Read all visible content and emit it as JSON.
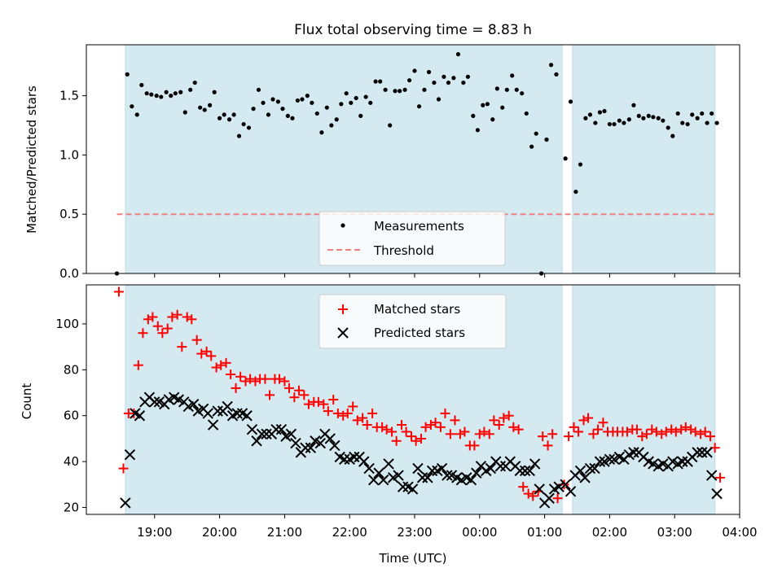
{
  "chart_data": [
    {
      "type": "scatter",
      "title": "Flux total observing time = 8.83 h",
      "xlabel": "",
      "ylabel": "Matched/Predicted stars",
      "xlim_hours": [
        17.95,
        28.0
      ],
      "ylim": [
        0,
        1.93
      ],
      "y_ticks": [
        0.0,
        0.5,
        1.0,
        1.5
      ],
      "y_tick_labels": [
        "0.0",
        "0.5",
        "1.0",
        "1.5"
      ],
      "shaded_intervals_hours": [
        [
          18.55,
          25.27
        ],
        [
          25.43,
          27.62
        ]
      ],
      "shade_color": "#d4e9f0",
      "threshold": {
        "name": "Threshold",
        "value": 0.5,
        "x_range_hours": [
          18.42,
          27.62
        ],
        "color": "#f07f7f"
      },
      "legend": {
        "placement": "bottom-center",
        "entries": [
          "Measurements",
          "Threshold"
        ]
      },
      "series": [
        {
          "name": "Measurements",
          "color": "#000000",
          "x_hours": [
            18.42,
            18.58,
            18.65,
            18.73,
            18.8,
            18.88,
            18.95,
            19.03,
            19.1,
            19.18,
            19.25,
            19.32,
            19.4,
            19.47,
            19.55,
            19.62,
            19.7,
            19.77,
            19.85,
            19.92,
            20.0,
            20.07,
            20.15,
            20.22,
            20.3,
            20.37,
            20.45,
            20.52,
            20.6,
            20.67,
            20.75,
            20.82,
            20.9,
            20.97,
            21.05,
            21.12,
            21.2,
            21.27,
            21.35,
            21.42,
            21.5,
            21.57,
            21.65,
            21.72,
            21.8,
            21.87,
            21.95,
            22.02,
            22.1,
            22.17,
            22.25,
            22.32,
            22.4,
            22.47,
            22.55,
            22.62,
            22.7,
            22.77,
            22.85,
            22.92,
            23.0,
            23.07,
            23.15,
            23.22,
            23.3,
            23.37,
            23.45,
            23.52,
            23.6,
            23.67,
            23.75,
            23.82,
            23.9,
            23.97,
            24.05,
            24.12,
            24.2,
            24.27,
            24.35,
            24.42,
            24.5,
            24.57,
            24.65,
            24.72,
            24.8,
            24.87,
            24.95,
            25.03,
            25.1,
            25.18,
            25.32,
            25.4,
            25.48,
            25.55,
            25.63,
            25.7,
            25.78,
            25.85,
            25.92,
            26.0,
            26.07,
            26.15,
            26.22,
            26.3,
            26.37,
            26.45,
            26.52,
            26.6,
            26.67,
            26.75,
            26.82,
            26.9,
            26.97,
            27.05,
            27.12,
            27.2,
            27.27,
            27.35,
            27.42,
            27.5,
            27.57,
            27.65
          ],
          "y": [
            0.0,
            1.68,
            1.41,
            1.34,
            1.59,
            1.52,
            1.51,
            1.5,
            1.49,
            1.53,
            1.5,
            1.52,
            1.53,
            1.36,
            1.55,
            1.61,
            1.4,
            1.38,
            1.42,
            1.53,
            1.31,
            1.34,
            1.3,
            1.34,
            1.16,
            1.26,
            1.23,
            1.39,
            1.55,
            1.44,
            1.34,
            1.47,
            1.45,
            1.39,
            1.33,
            1.31,
            1.46,
            1.47,
            1.5,
            1.44,
            1.35,
            1.19,
            1.4,
            1.25,
            1.3,
            1.43,
            1.52,
            1.44,
            1.48,
            1.33,
            1.49,
            1.44,
            1.62,
            1.62,
            1.55,
            1.25,
            1.54,
            1.54,
            1.55,
            1.63,
            1.71,
            1.41,
            1.55,
            1.7,
            1.61,
            1.47,
            1.66,
            1.61,
            1.65,
            1.85,
            1.61,
            1.66,
            1.33,
            1.21,
            1.42,
            1.43,
            1.3,
            1.56,
            1.4,
            1.55,
            1.67,
            1.55,
            1.52,
            1.35,
            1.07,
            1.18,
            0.0,
            1.13,
            1.76,
            1.68,
            0.97,
            1.45,
            0.69,
            0.92,
            1.31,
            1.34,
            1.27,
            1.36,
            1.37,
            1.26,
            1.26,
            1.29,
            1.27,
            1.3,
            1.42,
            1.33,
            1.31,
            1.33,
            1.32,
            1.31,
            1.29,
            1.23,
            1.16,
            1.35,
            1.27,
            1.26,
            1.34,
            1.31,
            1.35,
            1.27,
            1.35,
            1.27
          ]
        }
      ]
    },
    {
      "type": "scatter",
      "title": "",
      "xlabel": "Time (UTC)",
      "ylabel": "Count",
      "xlim_hours": [
        17.95,
        28.0
      ],
      "ylim": [
        17,
        117
      ],
      "x_ticks_hours": [
        19,
        20,
        21,
        22,
        23,
        24,
        25,
        26,
        27,
        28
      ],
      "x_tick_labels": [
        "19:00",
        "20:00",
        "21:00",
        "22:00",
        "23:00",
        "00:00",
        "01:00",
        "02:00",
        "03:00",
        "04:00"
      ],
      "y_ticks": [
        20,
        40,
        60,
        80,
        100
      ],
      "y_tick_labels": [
        "20",
        "40",
        "60",
        "80",
        "100"
      ],
      "shaded_intervals_hours": [
        [
          18.55,
          25.27
        ],
        [
          25.43,
          27.62
        ]
      ],
      "shade_color": "#d4e9f0",
      "legend": {
        "placement": "top-center",
        "entries": [
          "Matched stars",
          "Predicted stars"
        ]
      },
      "series": [
        {
          "name": "Matched stars",
          "marker": "plus",
          "color": "#ff0000",
          "x_hours": [
            18.45,
            18.52,
            18.6,
            18.68,
            18.75,
            18.82,
            18.9,
            18.97,
            19.05,
            19.12,
            19.2,
            19.27,
            19.35,
            19.42,
            19.5,
            19.57,
            19.65,
            19.72,
            19.8,
            19.87,
            19.95,
            20.02,
            20.1,
            20.17,
            20.25,
            20.32,
            20.4,
            20.47,
            20.55,
            20.62,
            20.7,
            20.77,
            20.85,
            20.92,
            21.0,
            21.07,
            21.15,
            21.22,
            21.3,
            21.37,
            21.45,
            21.52,
            21.6,
            21.67,
            21.75,
            21.82,
            21.9,
            21.97,
            22.05,
            22.12,
            22.2,
            22.27,
            22.35,
            22.42,
            22.5,
            22.57,
            22.65,
            22.72,
            22.8,
            22.87,
            22.95,
            23.02,
            23.1,
            23.17,
            23.25,
            23.32,
            23.4,
            23.47,
            23.55,
            23.62,
            23.7,
            23.77,
            23.85,
            23.92,
            24.0,
            24.07,
            24.15,
            24.22,
            24.3,
            24.37,
            24.45,
            24.52,
            24.6,
            24.67,
            24.75,
            24.82,
            24.9,
            24.97,
            25.05,
            25.12,
            25.2,
            25.3,
            25.37,
            25.45,
            25.52,
            25.6,
            25.67,
            25.75,
            25.82,
            25.9,
            25.97,
            26.05,
            26.12,
            26.2,
            26.27,
            26.35,
            26.42,
            26.5,
            26.57,
            26.65,
            26.72,
            26.8,
            26.87,
            26.95,
            27.02,
            27.1,
            27.17,
            27.25,
            27.32,
            27.4,
            27.47,
            27.55,
            27.62,
            27.7
          ],
          "y": [
            114,
            37,
            61,
            61,
            82,
            96,
            102,
            103,
            99,
            96,
            98,
            103,
            104,
            90,
            103,
            102,
            93,
            87,
            88,
            86,
            81,
            82,
            83,
            78,
            72,
            77,
            75,
            76,
            75,
            76,
            76,
            69,
            76,
            76,
            75,
            72,
            68,
            71,
            69,
            65,
            66,
            66,
            65,
            62,
            67,
            61,
            60,
            61,
            64,
            58,
            59,
            56,
            61,
            55,
            55,
            54,
            53,
            49,
            56,
            53,
            51,
            49,
            50,
            55,
            56,
            57,
            55,
            61,
            52,
            58,
            52,
            53,
            47,
            47,
            52,
            53,
            52,
            58,
            56,
            59,
            60,
            55,
            54,
            29,
            26,
            25,
            27,
            51,
            47,
            52,
            24,
            30,
            51,
            55,
            53,
            58,
            59,
            52,
            54,
            57,
            53,
            53,
            53,
            53,
            53,
            54,
            54,
            51,
            52,
            54,
            53,
            52,
            53,
            54,
            53,
            54,
            55,
            54,
            53,
            52,
            53,
            51,
            46,
            33
          ]
        },
        {
          "name": "Predicted stars",
          "marker": "x",
          "color": "#000000",
          "x_hours": [
            18.55,
            18.62,
            18.7,
            18.77,
            18.85,
            18.92,
            19.0,
            19.07,
            19.15,
            19.22,
            19.3,
            19.37,
            19.45,
            19.52,
            19.6,
            19.67,
            19.75,
            19.82,
            19.9,
            19.97,
            20.05,
            20.12,
            20.2,
            20.27,
            20.35,
            20.42,
            20.5,
            20.57,
            20.65,
            20.72,
            20.8,
            20.87,
            20.95,
            21.02,
            21.1,
            21.17,
            21.25,
            21.32,
            21.4,
            21.47,
            21.55,
            21.62,
            21.7,
            21.77,
            21.85,
            21.92,
            22.0,
            22.07,
            22.15,
            22.22,
            22.3,
            22.37,
            22.45,
            22.52,
            22.6,
            22.67,
            22.75,
            22.82,
            22.9,
            22.97,
            23.05,
            23.12,
            23.2,
            23.27,
            23.35,
            23.42,
            23.5,
            23.57,
            23.65,
            23.72,
            23.8,
            23.87,
            23.95,
            24.02,
            24.1,
            24.17,
            24.25,
            24.32,
            24.4,
            24.47,
            24.55,
            24.62,
            24.7,
            24.77,
            24.85,
            24.92,
            25.0,
            25.07,
            25.15,
            25.22,
            25.32,
            25.4,
            25.47,
            25.55,
            25.62,
            25.7,
            25.77,
            25.85,
            25.92,
            26.0,
            26.07,
            26.15,
            26.22,
            26.3,
            26.37,
            26.45,
            26.52,
            26.6,
            26.67,
            26.75,
            26.82,
            26.9,
            26.97,
            27.05,
            27.12,
            27.2,
            27.27,
            27.35,
            27.42,
            27.5,
            27.57,
            27.65
          ],
          "y": [
            22,
            43,
            61,
            60,
            66,
            68,
            66,
            66,
            65,
            67,
            68,
            67,
            66,
            64,
            65,
            62,
            63,
            61,
            56,
            62,
            62,
            64,
            60,
            61,
            61,
            60,
            54,
            49,
            52,
            52,
            52,
            54,
            54,
            51,
            52,
            48,
            44,
            46,
            46,
            49,
            48,
            52,
            50,
            47,
            42,
            41,
            41,
            42,
            42,
            40,
            37,
            32,
            35,
            32,
            39,
            33,
            34,
            29,
            29,
            28,
            37,
            33,
            33,
            36,
            36,
            37,
            34,
            34,
            33,
            32,
            33,
            32,
            35,
            38,
            36,
            37,
            40,
            38,
            38,
            40,
            38,
            36,
            36,
            36,
            39,
            28,
            22,
            24,
            28,
            29,
            30,
            27,
            34,
            36,
            33,
            37,
            37,
            40,
            40,
            41,
            41,
            42,
            41,
            43,
            44,
            44,
            42,
            40,
            39,
            38,
            39,
            38,
            40,
            39,
            40,
            40,
            42,
            44,
            44,
            44,
            34,
            26
          ]
        }
      ]
    }
  ]
}
